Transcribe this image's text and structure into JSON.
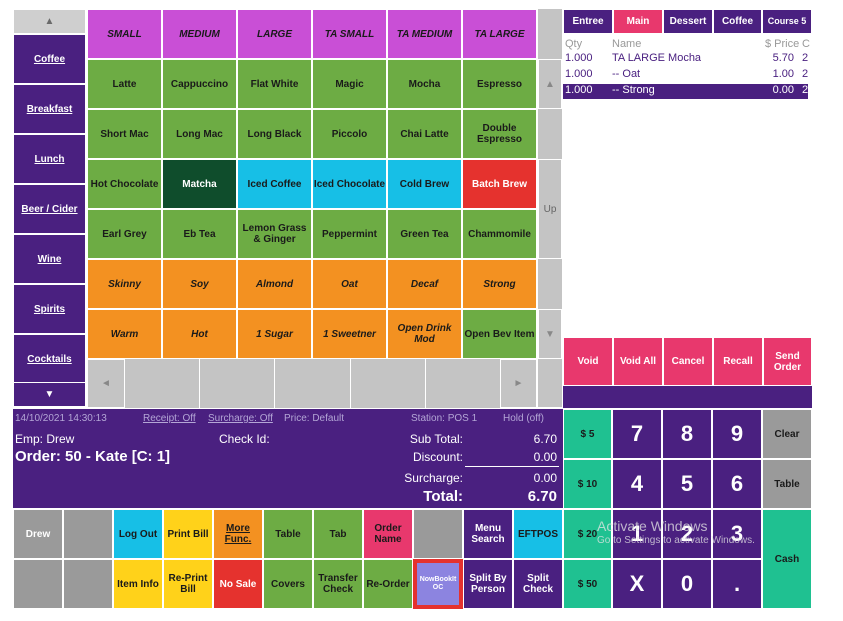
{
  "colors": {
    "purple_dark": "#4a2080",
    "pink": "#e8386d",
    "green": "#6dac44",
    "orange": "#f39121",
    "teal": "#17bfe6",
    "red": "#e5322e",
    "highlight_box": "#e5322e"
  },
  "categories": {
    "up_arrow": "▲",
    "down_arrow": "▼",
    "items": [
      "Coffee",
      "Breakfast",
      "Lunch",
      "Beer / Cider",
      "Wine",
      "Spirits",
      "Cocktails"
    ]
  },
  "size_row": [
    "SMALL",
    "MEDIUM",
    "LARGE",
    "TA SMALL",
    "TA MEDIUM",
    "TA LARGE"
  ],
  "grid": [
    [
      "Latte",
      "Cappuccino",
      "Flat White",
      "Magic",
      "Mocha",
      "Espresso"
    ],
    [
      "Short Mac",
      "Long Mac",
      "Long Black",
      "Piccolo",
      "Chai Latte",
      "Double Espresso"
    ],
    [
      "Hot Chocolate",
      "Matcha",
      "Iced Coffee",
      "Iced Chocolate",
      "Cold Brew",
      "Batch Brew"
    ],
    [
      "Earl Grey",
      "Eb Tea",
      "Lemon Grass & Ginger",
      "Peppermint",
      "Green Tea",
      "Chammomile"
    ],
    [
      "Skinny",
      "Soy",
      "Almond",
      "Oat",
      "Decaf",
      "Strong"
    ],
    [
      "Warm",
      "Hot",
      "1 Sugar",
      "1 Sweetner",
      "Open Drink Mod",
      "Open Bev Item"
    ]
  ],
  "scroll": {
    "left": "◄",
    "right": "►",
    "up": "▲",
    "down": "▼",
    "up_label": "Up"
  },
  "course_tabs": [
    "Entree",
    "Main",
    "Dessert",
    "Coffee",
    "Course 5"
  ],
  "order_headers": {
    "qty": "Qty",
    "name": "Name",
    "price": "$ Price",
    "c": "C"
  },
  "order_lines": [
    {
      "qty": "1.000",
      "name": "TA LARGE Mocha",
      "price": "5.70",
      "c": "2"
    },
    {
      "qty": "1.000",
      "name": "-- Oat",
      "price": "1.00",
      "c": "2"
    },
    {
      "qty": "1.000",
      "name": "-- Strong",
      "price": "0.00",
      "c": "2"
    }
  ],
  "order_actions": [
    "Void",
    "Void All",
    "Cancel",
    "Recall",
    "Send Order"
  ],
  "status": {
    "datetime": "14/10/2021 14:30:13",
    "receipt": "Receipt: Off",
    "surcharge": "Surcharge: Off",
    "price": "Price: Default",
    "station": "Station: POS 1",
    "hold": "Hold (off)",
    "employee": "Emp: Drew",
    "check_id": "Check Id:",
    "order": "Order: 50 - Kate [C:  1]",
    "subtotal_label": "Sub Total:",
    "subtotal": "6.70",
    "discount_label": "Discount:",
    "discount": "0.00",
    "surcharge_label": "Surcharge:",
    "surcharge_value": "0.00",
    "total_label": "Total:",
    "total": "6.70"
  },
  "bottom_row1": [
    "Drew",
    "",
    "Log Out",
    "Print Bill",
    "More Func.",
    "Table",
    "Tab",
    "Order Name",
    "",
    "Menu Search",
    "EFTPOS"
  ],
  "bottom_row2": [
    "",
    "",
    "Item Info",
    "Re-Print Bill",
    "No Sale",
    "Covers",
    "Transfer Check",
    "Re-Order",
    "NowBookIt OC",
    "Split By Person",
    "Split Check"
  ],
  "quick_cash": [
    "$ 5",
    "$ 10",
    "$ 20",
    "$ 50"
  ],
  "keypad": {
    "rows": [
      [
        "7",
        "8",
        "9"
      ],
      [
        "4",
        "5",
        "6"
      ],
      [
        "1",
        "2",
        "3"
      ],
      [
        "X",
        "0",
        "."
      ]
    ],
    "clear": "Clear",
    "table": "Table",
    "cash": "Cash"
  },
  "watermark": {
    "title": "Activate Windows",
    "subtitle": "Go to Settings to activate Windows."
  }
}
